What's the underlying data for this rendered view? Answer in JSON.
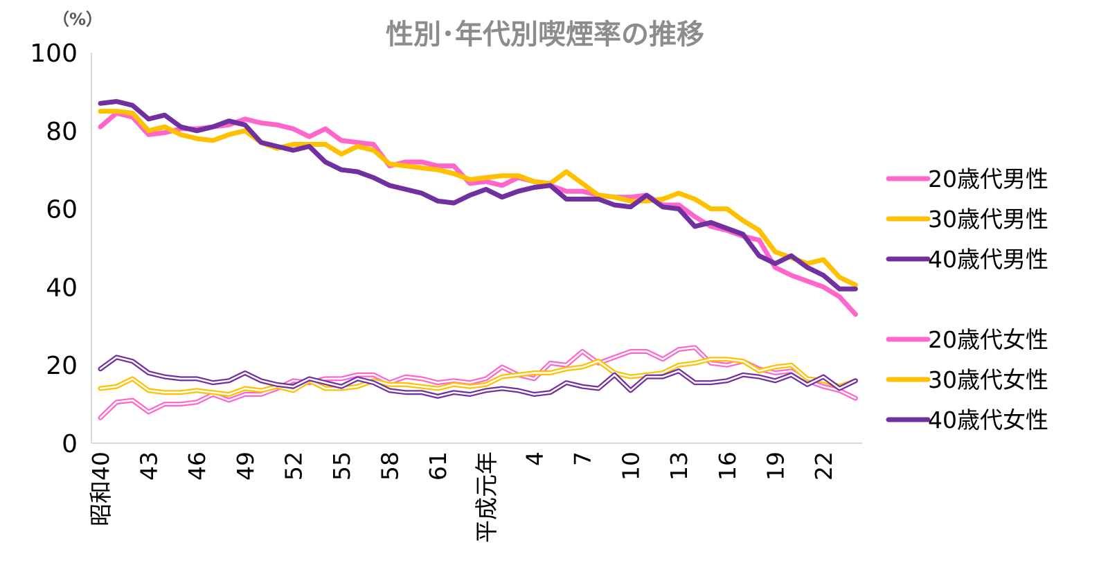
{
  "chart_data": {
    "type": "line",
    "title": "性別･年代別喫煙率の推移",
    "unit_label": "（%）",
    "ylim": [
      0,
      100
    ],
    "yticks": [
      "0",
      "20",
      "40",
      "60",
      "80",
      "100"
    ],
    "xticks": [
      "昭和40",
      "43",
      "46",
      "49",
      "52",
      "55",
      "58",
      "61",
      "平成元年",
      "4",
      "7",
      "10",
      "13",
      "16",
      "19",
      "22"
    ],
    "x": [
      "昭和40",
      "41",
      "42",
      "43",
      "44",
      "45",
      "46",
      "47",
      "48",
      "49",
      "50",
      "51",
      "52",
      "53",
      "54",
      "55",
      "56",
      "57",
      "58",
      "59",
      "60",
      "61",
      "62",
      "63",
      "平成元年",
      "2",
      "3",
      "4",
      "5",
      "6",
      "7",
      "8",
      "9",
      "10",
      "11",
      "12",
      "13",
      "14",
      "15",
      "16",
      "17",
      "18",
      "19",
      "20",
      "21",
      "22",
      "23",
      "24"
    ],
    "grid": false,
    "legend_position": "right",
    "series": [
      {
        "name": "20歳代男性",
        "color": "#ff66cc",
        "style": "solid",
        "values": [
          81,
          84.5,
          83.5,
          79,
          79.5,
          80.5,
          80.5,
          81,
          81.5,
          83,
          82,
          81.5,
          80.5,
          78.5,
          80.5,
          77.5,
          77,
          76.5,
          71,
          72,
          72,
          71,
          71,
          66.5,
          67,
          66,
          68,
          67,
          66,
          64.5,
          64.5,
          63.5,
          63,
          63,
          63.5,
          61,
          61,
          58,
          55.5,
          54.5,
          53,
          52,
          45,
          43,
          41.5,
          40,
          37.5,
          33
        ]
      },
      {
        "name": "30歳代男性",
        "color": "#ffc000",
        "style": "solid",
        "values": [
          85,
          85,
          84.5,
          80,
          81,
          79,
          78,
          77.5,
          79,
          80,
          77,
          75.5,
          76.5,
          76.5,
          76.5,
          74,
          76,
          75,
          71.5,
          71,
          70.5,
          70,
          69,
          67.5,
          68,
          68.5,
          68.5,
          67,
          66.5,
          69.5,
          66.5,
          63.5,
          63,
          62,
          62,
          62.5,
          64,
          62.5,
          60,
          60,
          57,
          54.5,
          49,
          47.5,
          46,
          47,
          42.5,
          40.5
        ]
      },
      {
        "name": "40歳代男性",
        "color": "#7030a0",
        "style": "solid",
        "values": [
          87,
          87.5,
          86.5,
          83,
          84,
          81,
          80,
          81,
          82.5,
          81.5,
          77,
          76,
          75,
          76,
          72,
          70,
          69.5,
          68,
          66,
          65,
          64,
          62,
          61.5,
          63.5,
          65,
          63,
          64.5,
          65.5,
          66,
          62.5,
          62.5,
          62.5,
          61,
          60.5,
          63.5,
          60.5,
          60,
          55.5,
          56.5,
          55,
          53.5,
          48,
          46,
          48,
          45,
          43,
          39.5,
          39.5
        ]
      },
      {
        "name": "20歳代女性",
        "color": "#ff66cc",
        "style": "double",
        "values": [
          6.5,
          10.5,
          11,
          8,
          10,
          10,
          10.5,
          12.5,
          11,
          12.5,
          12.5,
          14,
          16,
          15.5,
          16.5,
          16.5,
          17.5,
          17.5,
          15.5,
          17,
          16.5,
          15.5,
          16,
          15.5,
          16.5,
          19.5,
          17.5,
          16.5,
          20.5,
          20,
          23.5,
          20.5,
          22,
          23.5,
          23.5,
          21.5,
          24,
          24.5,
          20.5,
          20,
          21,
          19,
          18,
          18.5,
          16,
          14.5,
          13.5,
          11.5
        ]
      },
      {
        "name": "30歳代女性",
        "color": "#ffc000",
        "style": "double",
        "values": [
          14,
          14.5,
          16.5,
          13.5,
          13,
          13,
          13.5,
          13,
          12.5,
          14,
          13.5,
          14.5,
          13.5,
          16,
          14,
          14,
          14.5,
          16,
          15,
          15,
          14.5,
          14,
          15,
          14.5,
          15,
          17,
          17.5,
          18,
          18,
          19,
          19.5,
          21,
          18,
          17,
          17.5,
          18,
          20,
          20.5,
          21.5,
          21.5,
          21,
          18.5,
          19.5,
          20,
          16.5,
          16,
          14.5,
          16
        ]
      },
      {
        "name": "40歳代女性",
        "color": "#7030a0",
        "style": "double",
        "values": [
          19,
          22,
          21,
          18,
          17,
          16.5,
          16.5,
          15.5,
          16,
          18,
          16,
          15,
          14.5,
          16.5,
          15.5,
          14.5,
          16.5,
          15.5,
          13.5,
          13,
          13,
          12,
          13,
          12.5,
          13.5,
          14,
          13.5,
          12.5,
          13,
          15.5,
          14.5,
          14,
          17.5,
          13.5,
          17,
          17,
          18.5,
          15.5,
          15.5,
          16,
          17.5,
          17,
          16,
          17.5,
          15,
          17,
          14,
          16
        ]
      }
    ]
  },
  "legend": {
    "male": [
      "20歳代男性",
      "30歳代男性",
      "40歳代男性"
    ],
    "female": [
      "20歳代女性",
      "30歳代女性",
      "40歳代女性"
    ]
  }
}
